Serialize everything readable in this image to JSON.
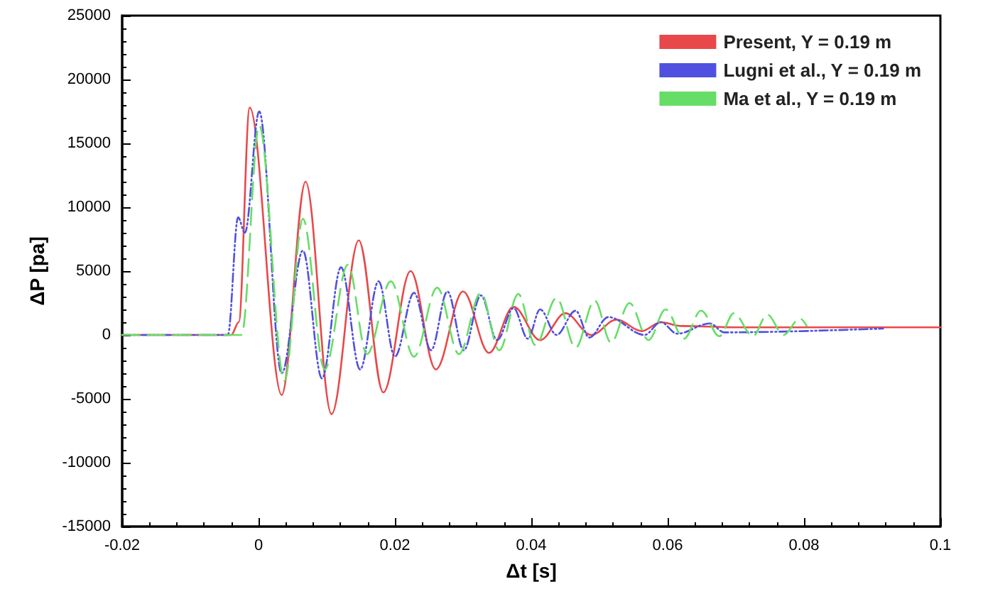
{
  "chart_data": {
    "type": "line",
    "xlabel": "Δt [s]",
    "ylabel": "ΔP [pa]",
    "xlim": [
      -0.02,
      0.1
    ],
    "xticks": [
      -0.02,
      0,
      0.02,
      0.04,
      0.06,
      0.08,
      0.1
    ],
    "ylim": [
      -15000,
      25000
    ],
    "yticks": [
      -15000,
      -10000,
      -5000,
      0,
      5000,
      10000,
      15000,
      20000,
      25000
    ],
    "grid": false,
    "legend": "top right",
    "marker": "none",
    "series": [
      {
        "name": "Present, Y = 0.19 m",
        "color": "#e8484a",
        "line_style": "solid",
        "x": [
          -0.02,
          -0.004,
          -0.0029,
          -0.0013,
          0.0034,
          0.0069,
          0.0107,
          0.0147,
          0.0183,
          0.0223,
          0.026,
          0.03,
          0.0338,
          0.0374,
          0.0413,
          0.045,
          0.0488,
          0.0525,
          0.0562,
          0.059,
          0.062,
          0.07,
          0.1
        ],
        "values": [
          0,
          0,
          1000,
          17800,
          -4700,
          12000,
          -6200,
          7400,
          -4500,
          5000,
          -2700,
          3400,
          -1400,
          2200,
          -400,
          1700,
          0,
          1200,
          300,
          1000,
          700,
          600,
          600
        ]
      },
      {
        "name": "Lugni et al., Y = 0.19 m",
        "color": "#5050e0",
        "line_style": "dotted",
        "x": [
          -0.02,
          -0.0045,
          -0.003,
          -0.002,
          0.0001,
          0.0034,
          0.0065,
          0.0093,
          0.0121,
          0.0149,
          0.0176,
          0.02,
          0.0228,
          0.0253,
          0.0277,
          0.0301,
          0.0326,
          0.035,
          0.0374,
          0.0395,
          0.0413,
          0.0437,
          0.0465,
          0.0485,
          0.0513,
          0.0566,
          0.059,
          0.0614,
          0.0662,
          0.0683,
          0.0916
        ],
        "values": [
          0,
          0,
          9200,
          8000,
          17500,
          -3000,
          6600,
          -3400,
          5300,
          -2700,
          4200,
          -1700,
          3300,
          -1200,
          3400,
          -1200,
          3100,
          -400,
          2100,
          -300,
          2000,
          0,
          1900,
          -200,
          1400,
          0,
          1000,
          100,
          900,
          200,
          500
        ]
      },
      {
        "name": "Ma et al., Y = 0.19 m",
        "color": "#66dd66",
        "line_style": "dashed",
        "x": [
          -0.02,
          -0.0025,
          0.0001,
          0.0038,
          0.0065,
          0.0097,
          0.0131,
          0.0159,
          0.0194,
          0.0228,
          0.0262,
          0.0294,
          0.0326,
          0.0353,
          0.0381,
          0.0406,
          0.0437,
          0.0465,
          0.0493,
          0.0517,
          0.0544,
          0.0572,
          0.0597,
          0.0624,
          0.0649,
          0.0676,
          0.0697,
          0.0725,
          0.0746,
          0.077,
          0.0794,
          0.0804
        ],
        "values": [
          0,
          0,
          16400,
          -3600,
          9100,
          -2700,
          5500,
          -1500,
          4200,
          -1700,
          3700,
          -1500,
          3300,
          -1200,
          3200,
          -800,
          2900,
          -1000,
          2700,
          -600,
          2500,
          -400,
          2000,
          -300,
          1900,
          -100,
          1700,
          -100,
          1600,
          0,
          1300,
          700
        ]
      }
    ]
  }
}
